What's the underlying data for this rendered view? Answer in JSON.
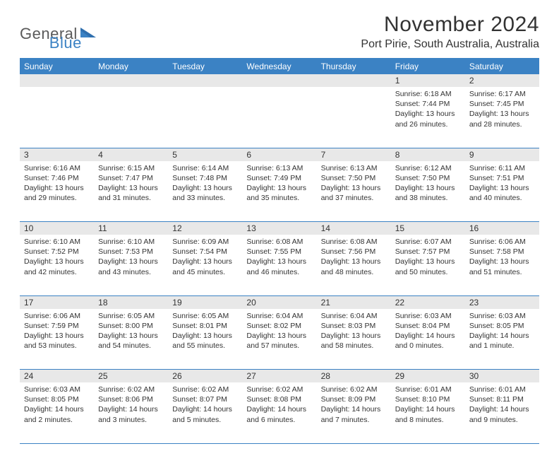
{
  "logo": {
    "text1": "General",
    "text2": "Blue"
  },
  "title": "November 2024",
  "location": "Port Pirie, South Australia, Australia",
  "colors": {
    "accent": "#3b82c4",
    "header_bg": "#3b82c4",
    "header_fg": "#ffffff",
    "daynum_bg": "#e8e8e8",
    "text": "#333333",
    "rule": "#3b82c4"
  },
  "weekdays": [
    "Sunday",
    "Monday",
    "Tuesday",
    "Wednesday",
    "Thursday",
    "Friday",
    "Saturday"
  ],
  "weeks": [
    [
      null,
      null,
      null,
      null,
      null,
      {
        "d": "1",
        "sr": "6:18 AM",
        "ss": "7:44 PM",
        "dl": "13 hours and 26 minutes."
      },
      {
        "d": "2",
        "sr": "6:17 AM",
        "ss": "7:45 PM",
        "dl": "13 hours and 28 minutes."
      }
    ],
    [
      {
        "d": "3",
        "sr": "6:16 AM",
        "ss": "7:46 PM",
        "dl": "13 hours and 29 minutes."
      },
      {
        "d": "4",
        "sr": "6:15 AM",
        "ss": "7:47 PM",
        "dl": "13 hours and 31 minutes."
      },
      {
        "d": "5",
        "sr": "6:14 AM",
        "ss": "7:48 PM",
        "dl": "13 hours and 33 minutes."
      },
      {
        "d": "6",
        "sr": "6:13 AM",
        "ss": "7:49 PM",
        "dl": "13 hours and 35 minutes."
      },
      {
        "d": "7",
        "sr": "6:13 AM",
        "ss": "7:50 PM",
        "dl": "13 hours and 37 minutes."
      },
      {
        "d": "8",
        "sr": "6:12 AM",
        "ss": "7:50 PM",
        "dl": "13 hours and 38 minutes."
      },
      {
        "d": "9",
        "sr": "6:11 AM",
        "ss": "7:51 PM",
        "dl": "13 hours and 40 minutes."
      }
    ],
    [
      {
        "d": "10",
        "sr": "6:10 AM",
        "ss": "7:52 PM",
        "dl": "13 hours and 42 minutes."
      },
      {
        "d": "11",
        "sr": "6:10 AM",
        "ss": "7:53 PM",
        "dl": "13 hours and 43 minutes."
      },
      {
        "d": "12",
        "sr": "6:09 AM",
        "ss": "7:54 PM",
        "dl": "13 hours and 45 minutes."
      },
      {
        "d": "13",
        "sr": "6:08 AM",
        "ss": "7:55 PM",
        "dl": "13 hours and 46 minutes."
      },
      {
        "d": "14",
        "sr": "6:08 AM",
        "ss": "7:56 PM",
        "dl": "13 hours and 48 minutes."
      },
      {
        "d": "15",
        "sr": "6:07 AM",
        "ss": "7:57 PM",
        "dl": "13 hours and 50 minutes."
      },
      {
        "d": "16",
        "sr": "6:06 AM",
        "ss": "7:58 PM",
        "dl": "13 hours and 51 minutes."
      }
    ],
    [
      {
        "d": "17",
        "sr": "6:06 AM",
        "ss": "7:59 PM",
        "dl": "13 hours and 53 minutes."
      },
      {
        "d": "18",
        "sr": "6:05 AM",
        "ss": "8:00 PM",
        "dl": "13 hours and 54 minutes."
      },
      {
        "d": "19",
        "sr": "6:05 AM",
        "ss": "8:01 PM",
        "dl": "13 hours and 55 minutes."
      },
      {
        "d": "20",
        "sr": "6:04 AM",
        "ss": "8:02 PM",
        "dl": "13 hours and 57 minutes."
      },
      {
        "d": "21",
        "sr": "6:04 AM",
        "ss": "8:03 PM",
        "dl": "13 hours and 58 minutes."
      },
      {
        "d": "22",
        "sr": "6:03 AM",
        "ss": "8:04 PM",
        "dl": "14 hours and 0 minutes."
      },
      {
        "d": "23",
        "sr": "6:03 AM",
        "ss": "8:05 PM",
        "dl": "14 hours and 1 minute."
      }
    ],
    [
      {
        "d": "24",
        "sr": "6:03 AM",
        "ss": "8:05 PM",
        "dl": "14 hours and 2 minutes."
      },
      {
        "d": "25",
        "sr": "6:02 AM",
        "ss": "8:06 PM",
        "dl": "14 hours and 3 minutes."
      },
      {
        "d": "26",
        "sr": "6:02 AM",
        "ss": "8:07 PM",
        "dl": "14 hours and 5 minutes."
      },
      {
        "d": "27",
        "sr": "6:02 AM",
        "ss": "8:08 PM",
        "dl": "14 hours and 6 minutes."
      },
      {
        "d": "28",
        "sr": "6:02 AM",
        "ss": "8:09 PM",
        "dl": "14 hours and 7 minutes."
      },
      {
        "d": "29",
        "sr": "6:01 AM",
        "ss": "8:10 PM",
        "dl": "14 hours and 8 minutes."
      },
      {
        "d": "30",
        "sr": "6:01 AM",
        "ss": "8:11 PM",
        "dl": "14 hours and 9 minutes."
      }
    ]
  ],
  "labels": {
    "sunrise": "Sunrise:",
    "sunset": "Sunset:",
    "daylight": "Daylight:"
  }
}
